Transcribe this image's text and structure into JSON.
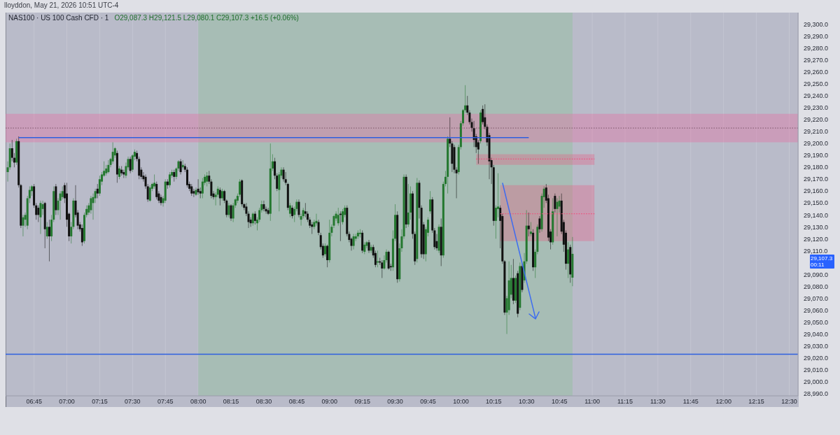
{
  "chart_data": {
    "type": "candlestick",
    "title": "lloyddon, May 21, 2026 10:51 UTC-4",
    "subtitle": "NAS100 · US 100 Cash CFD · 1",
    "annotations": [
      "O29,087.3 H29,121.5 L29,080.1 C29,107.3 +16.5 (+0.06%)",
      "29,107.3",
      "00:11"
    ],
    "x": [
      "2026-05-21T06:33",
      "2026-05-21T06:34",
      "2026-05-21T06:35",
      "2026-05-21T06:36",
      "2026-05-21T06:37",
      "2026-05-21T06:38",
      "2026-05-21T06:39",
      "2026-05-21T06:40",
      "2026-05-21T06:41",
      "2026-05-21T06:42",
      "2026-05-21T06:43",
      "2026-05-21T06:44",
      "2026-05-21T06:45",
      "2026-05-21T06:46",
      "2026-05-21T06:47",
      "2026-05-21T06:48",
      "2026-05-21T06:49",
      "2026-05-21T06:50",
      "2026-05-21T06:51",
      "2026-05-21T06:52",
      "2026-05-21T06:53",
      "2026-05-21T06:54",
      "2026-05-21T06:55",
      "2026-05-21T06:56",
      "2026-05-21T06:57",
      "2026-05-21T06:58",
      "2026-05-21T06:59",
      "2026-05-21T07:00",
      "2026-05-21T07:01",
      "2026-05-21T07:02",
      "2026-05-21T07:03",
      "2026-05-21T07:04",
      "2026-05-21T07:05",
      "2026-05-21T07:06",
      "2026-05-21T07:07",
      "2026-05-21T07:08",
      "2026-05-21T07:09",
      "2026-05-21T07:10",
      "2026-05-21T07:11",
      "2026-05-21T07:12",
      "2026-05-21T07:13",
      "2026-05-21T07:14",
      "2026-05-21T07:15",
      "2026-05-21T07:16",
      "2026-05-21T07:17",
      "2026-05-21T07:18",
      "2026-05-21T07:19",
      "2026-05-21T07:20",
      "2026-05-21T07:21",
      "2026-05-21T07:22",
      "2026-05-21T07:23",
      "2026-05-21T07:24",
      "2026-05-21T07:25",
      "2026-05-21T07:26",
      "2026-05-21T07:27",
      "2026-05-21T07:28",
      "2026-05-21T07:29",
      "2026-05-21T07:30",
      "2026-05-21T07:31",
      "2026-05-21T07:32",
      "2026-05-21T07:33",
      "2026-05-21T07:34",
      "2026-05-21T07:35",
      "2026-05-21T07:36",
      "2026-05-21T07:37",
      "2026-05-21T07:38",
      "2026-05-21T07:39",
      "2026-05-21T07:40",
      "2026-05-21T07:41",
      "2026-05-21T07:42",
      "2026-05-21T07:43",
      "2026-05-21T07:44",
      "2026-05-21T07:45",
      "2026-05-21T07:46",
      "2026-05-21T07:47",
      "2026-05-21T07:48",
      "2026-05-21T07:49",
      "2026-05-21T07:50",
      "2026-05-21T07:51",
      "2026-05-21T07:52",
      "2026-05-21T07:53",
      "2026-05-21T07:54",
      "2026-05-21T07:55",
      "2026-05-21T07:56",
      "2026-05-21T07:57",
      "2026-05-21T07:58",
      "2026-05-21T07:59",
      "2026-05-21T08:00",
      "2026-05-21T08:01",
      "2026-05-21T08:02",
      "2026-05-21T08:03",
      "2026-05-21T08:04",
      "2026-05-21T08:05",
      "2026-05-21T08:06",
      "2026-05-21T08:07",
      "2026-05-21T08:08",
      "2026-05-21T08:09",
      "2026-05-21T08:10",
      "2026-05-21T08:11",
      "2026-05-21T08:12",
      "2026-05-21T08:13",
      "2026-05-21T08:14",
      "2026-05-21T08:15",
      "2026-05-21T08:16",
      "2026-05-21T08:17",
      "2026-05-21T08:18",
      "2026-05-21T08:19",
      "2026-05-21T08:20",
      "2026-05-21T08:21",
      "2026-05-21T08:22",
      "2026-05-21T08:23",
      "2026-05-21T08:24",
      "2026-05-21T08:25",
      "2026-05-21T08:26",
      "2026-05-21T08:27",
      "2026-05-21T08:28",
      "2026-05-21T08:29",
      "2026-05-21T08:30",
      "2026-05-21T08:31",
      "2026-05-21T08:32",
      "2026-05-21T08:33",
      "2026-05-21T08:34",
      "2026-05-21T08:35",
      "2026-05-21T08:36",
      "2026-05-21T08:37",
      "2026-05-21T08:38",
      "2026-05-21T08:39",
      "2026-05-21T08:40",
      "2026-05-21T08:41",
      "2026-05-21T08:42",
      "2026-05-21T08:43",
      "2026-05-21T08:44",
      "2026-05-21T08:45",
      "2026-05-21T08:46",
      "2026-05-21T08:47",
      "2026-05-21T08:48",
      "2026-05-21T08:49",
      "2026-05-21T08:50",
      "2026-05-21T08:51",
      "2026-05-21T08:52",
      "2026-05-21T08:53",
      "2026-05-21T08:54",
      "2026-05-21T08:55",
      "2026-05-21T08:56",
      "2026-05-21T08:57",
      "2026-05-21T08:58",
      "2026-05-21T08:59",
      "2026-05-21T09:00",
      "2026-05-21T09:01",
      "2026-05-21T09:02",
      "2026-05-21T09:03",
      "2026-05-21T09:04",
      "2026-05-21T09:05",
      "2026-05-21T09:06",
      "2026-05-21T09:07",
      "2026-05-21T09:08",
      "2026-05-21T09:09",
      "2026-05-21T09:10",
      "2026-05-21T09:11",
      "2026-05-21T09:12",
      "2026-05-21T09:13",
      "2026-05-21T09:14",
      "2026-05-21T09:15",
      "2026-05-21T09:16",
      "2026-05-21T09:17",
      "2026-05-21T09:18",
      "2026-05-21T09:19",
      "2026-05-21T09:20",
      "2026-05-21T09:21",
      "2026-05-21T09:22",
      "2026-05-21T09:23",
      "2026-05-21T09:24",
      "2026-05-21T09:25",
      "2026-05-21T09:26",
      "2026-05-21T09:27",
      "2026-05-21T09:28",
      "2026-05-21T09:29",
      "2026-05-21T09:30",
      "2026-05-21T09:31",
      "2026-05-21T09:32",
      "2026-05-21T09:33",
      "2026-05-21T09:34",
      "2026-05-21T09:35",
      "2026-05-21T09:36",
      "2026-05-21T09:37",
      "2026-05-21T09:38",
      "2026-05-21T09:39",
      "2026-05-21T09:40",
      "2026-05-21T09:41",
      "2026-05-21T09:42",
      "2026-05-21T09:43",
      "2026-05-21T09:44",
      "2026-05-21T09:45",
      "2026-05-21T09:46",
      "2026-05-21T09:47",
      "2026-05-21T09:48",
      "2026-05-21T09:49",
      "2026-05-21T09:50",
      "2026-05-21T09:51",
      "2026-05-21T09:52",
      "2026-05-21T09:53",
      "2026-05-21T09:54",
      "2026-05-21T09:55",
      "2026-05-21T09:56",
      "2026-05-21T09:57",
      "2026-05-21T09:58",
      "2026-05-21T09:59",
      "2026-05-21T10:00",
      "2026-05-21T10:01",
      "2026-05-21T10:02",
      "2026-05-21T10:03",
      "2026-05-21T10:04",
      "2026-05-21T10:05",
      "2026-05-21T10:06",
      "2026-05-21T10:07",
      "2026-05-21T10:08",
      "2026-05-21T10:09",
      "2026-05-21T10:10",
      "2026-05-21T10:11",
      "2026-05-21T10:12",
      "2026-05-21T10:13",
      "2026-05-21T10:14",
      "2026-05-21T10:15",
      "2026-05-21T10:16",
      "2026-05-21T10:17",
      "2026-05-21T10:18",
      "2026-05-21T10:19",
      "2026-05-21T10:20",
      "2026-05-21T10:21",
      "2026-05-21T10:22",
      "2026-05-21T10:23",
      "2026-05-21T10:24",
      "2026-05-21T10:25",
      "2026-05-21T10:26",
      "2026-05-21T10:27",
      "2026-05-21T10:28",
      "2026-05-21T10:29",
      "2026-05-21T10:30",
      "2026-05-21T10:31",
      "2026-05-21T10:32",
      "2026-05-21T10:33",
      "2026-05-21T10:34",
      "2026-05-21T10:35",
      "2026-05-21T10:36",
      "2026-05-21T10:37",
      "2026-05-21T10:38",
      "2026-05-21T10:39",
      "2026-05-21T10:40",
      "2026-05-21T10:41",
      "2026-05-21T10:42",
      "2026-05-21T10:43",
      "2026-05-21T10:44",
      "2026-05-21T10:45",
      "2026-05-21T10:46",
      "2026-05-21T10:47",
      "2026-05-21T10:48",
      "2026-05-21T10:49",
      "2026-05-21T10:50",
      "2026-05-21T10:51"
    ],
    "ohlc": [
      [
        29176,
        29185,
        29168,
        29180
      ],
      [
        29180,
        29200,
        29178,
        29196
      ],
      [
        29196,
        29203,
        29185,
        29188
      ],
      [
        29188,
        29192,
        29180,
        29184
      ],
      [
        29184,
        29204,
        29182,
        29202
      ],
      [
        29202,
        29206,
        29163,
        29165
      ],
      [
        29165,
        29166,
        29129,
        29131
      ],
      [
        29131,
        29140,
        29122,
        29138
      ],
      [
        29136,
        29142,
        29130,
        29140
      ],
      [
        29131,
        29156,
        29128,
        29154
      ],
      [
        29154,
        29164,
        29150,
        29161
      ],
      [
        29160,
        29165,
        29156,
        29164
      ],
      [
        29164,
        29166,
        29146,
        29148
      ],
      [
        29148,
        29150,
        29136,
        29140
      ],
      [
        29146,
        29148,
        29134,
        29140
      ],
      [
        29138,
        29152,
        29124,
        29150
      ],
      [
        29145,
        29152,
        29140,
        29149
      ],
      [
        29150,
        29151,
        29112,
        29128
      ],
      [
        29122,
        29134,
        29120,
        29130
      ],
      [
        29130,
        29136,
        29101,
        29122
      ],
      [
        29122,
        29140,
        29118,
        29136
      ],
      [
        29136,
        29164,
        29134,
        29160
      ],
      [
        29164,
        29166,
        29140,
        29144
      ],
      [
        29144,
        29154,
        29140,
        29152
      ],
      [
        29152,
        29160,
        29136,
        29158
      ],
      [
        29155,
        29164,
        29153,
        29160
      ],
      [
        29165,
        29167,
        29150,
        29154
      ],
      [
        29158,
        29167,
        29130,
        29136
      ],
      [
        29141,
        29142,
        29118,
        29122
      ],
      [
        29122,
        29134,
        29116,
        29130
      ],
      [
        29130,
        29154,
        29128,
        29152
      ],
      [
        29152,
        29165,
        29138,
        29140
      ],
      [
        29142,
        29144,
        29128,
        29131
      ],
      [
        29132,
        29134,
        29126,
        29128
      ],
      [
        29129,
        29132,
        29114,
        29117
      ],
      [
        29118,
        29142,
        29116,
        29140
      ],
      [
        29140,
        29148,
        29138,
        29145
      ],
      [
        29142,
        29150,
        29140,
        29148
      ],
      [
        29144,
        29156,
        29141,
        29154
      ],
      [
        29150,
        29158,
        29136,
        29155
      ],
      [
        29154,
        29162,
        29150,
        29160
      ],
      [
        29162,
        29166,
        29154,
        29158
      ],
      [
        29158,
        29173,
        29156,
        29170
      ],
      [
        29168,
        29176,
        29165,
        29174
      ],
      [
        29173,
        29185,
        29172,
        29177
      ],
      [
        29175,
        29182,
        29173,
        29179
      ],
      [
        29176,
        29186,
        29175,
        29182
      ],
      [
        29182,
        29188,
        29180,
        29187
      ],
      [
        29185,
        29201,
        29183,
        29193
      ],
      [
        29190,
        29197,
        29188,
        29196
      ],
      [
        29192,
        29194,
        29167,
        29174
      ],
      [
        29172,
        29181,
        29170,
        29179
      ],
      [
        29178,
        29181,
        29173,
        29175
      ],
      [
        29176,
        29178,
        29171,
        29174
      ],
      [
        29173,
        29184,
        29171,
        29181
      ],
      [
        29180,
        29189,
        29178,
        29187
      ],
      [
        29187,
        29189,
        29175,
        29177
      ],
      [
        29178,
        29191,
        29176,
        29190
      ],
      [
        29189,
        29195,
        29186,
        29193
      ],
      [
        29192,
        29194,
        29185,
        29187
      ],
      [
        29187,
        29189,
        29170,
        29173
      ],
      [
        29178,
        29180,
        29170,
        29172
      ],
      [
        29173,
        29176,
        29168,
        29170
      ],
      [
        29172,
        29174,
        29162,
        29164
      ],
      [
        29164,
        29166,
        29151,
        29153
      ],
      [
        29152,
        29165,
        29151,
        29163
      ],
      [
        29162,
        29167,
        29160,
        29166
      ],
      [
        29164,
        29174,
        29162,
        29167
      ],
      [
        29166,
        29168,
        29153,
        29155
      ],
      [
        29158,
        29160,
        29150,
        29152
      ],
      [
        29155,
        29157,
        29148,
        29150
      ],
      [
        29150,
        29156,
        29147,
        29154
      ],
      [
        29152,
        29170,
        29150,
        29168
      ],
      [
        29168,
        29170,
        29162,
        29165
      ],
      [
        29165,
        29176,
        29163,
        29174
      ],
      [
        29173,
        29178,
        29171,
        29176
      ],
      [
        29176,
        29178,
        29168,
        29172
      ],
      [
        29172,
        29180,
        29170,
        29179
      ],
      [
        29179,
        29186,
        29177,
        29185
      ],
      [
        29185,
        29187,
        29174,
        29176
      ],
      [
        29180,
        29186,
        29178,
        29182
      ],
      [
        29181,
        29183,
        29176,
        29178
      ],
      [
        29178,
        29180,
        29163,
        29165
      ],
      [
        29166,
        29168,
        29160,
        29162
      ],
      [
        29164,
        29166,
        29156,
        29158
      ],
      [
        29160,
        29162,
        29155,
        29158
      ],
      [
        29157,
        29163,
        29156,
        29161
      ],
      [
        29162,
        29170,
        29157,
        29159
      ],
      [
        29160,
        29163,
        29154,
        29158
      ],
      [
        29158,
        29171,
        29154,
        29168
      ],
      [
        29167,
        29174,
        29165,
        29172
      ],
      [
        29168,
        29176,
        29164,
        29173
      ],
      [
        29173,
        29177,
        29166,
        29168
      ],
      [
        29168,
        29170,
        29154,
        29156
      ],
      [
        29158,
        29160,
        29153,
        29155
      ],
      [
        29155,
        29159,
        29148,
        29157
      ],
      [
        29157,
        29164,
        29155,
        29162
      ],
      [
        29161,
        29163,
        29148,
        29154
      ],
      [
        29154,
        29162,
        29152,
        29160
      ],
      [
        29160,
        29161,
        29150,
        29152
      ],
      [
        29152,
        29153,
        29138,
        29140
      ],
      [
        29140,
        29150,
        29138,
        29148
      ],
      [
        29148,
        29149,
        29135,
        29137
      ],
      [
        29137,
        29150,
        29134,
        29148
      ],
      [
        29148,
        29154,
        29146,
        29153
      ],
      [
        29152,
        29158,
        29150,
        29156
      ],
      [
        29157,
        29170,
        29155,
        29168
      ],
      [
        29169,
        29170,
        29147,
        29149
      ],
      [
        29149,
        29150,
        29144,
        29146
      ],
      [
        29147,
        29150,
        29139,
        29141
      ],
      [
        29141,
        29143,
        29129,
        29134
      ],
      [
        29136,
        29138,
        29130,
        29133
      ],
      [
        29133,
        29142,
        29131,
        29141
      ],
      [
        29141,
        29143,
        29132,
        29135
      ],
      [
        29133,
        29138,
        29127,
        29136
      ],
      [
        29136,
        29146,
        29134,
        29144
      ],
      [
        29144,
        29152,
        29142,
        29149
      ],
      [
        29149,
        29152,
        29143,
        29145
      ],
      [
        29145,
        29147,
        29141,
        29143
      ],
      [
        29144,
        29146,
        29140,
        29141
      ],
      [
        29141,
        29200,
        29135,
        29179
      ],
      [
        29179,
        29191,
        29177,
        29185
      ],
      [
        29185,
        29188,
        29170,
        29173
      ],
      [
        29173,
        29175,
        29160,
        29162
      ],
      [
        29161,
        29176,
        29143,
        29174
      ],
      [
        29173,
        29180,
        29171,
        29178
      ],
      [
        29178,
        29180,
        29168,
        29170
      ],
      [
        29170,
        29176,
        29165,
        29167
      ],
      [
        29166,
        29167,
        29144,
        29146
      ],
      [
        29141,
        29150,
        29138,
        29148
      ],
      [
        29146,
        29148,
        29137,
        29139
      ],
      [
        29140,
        29147,
        29134,
        29145
      ],
      [
        29145,
        29153,
        29143,
        29151
      ],
      [
        29151,
        29153,
        29138,
        29140
      ],
      [
        29136,
        29141,
        29131,
        29139
      ],
      [
        29139,
        29146,
        29137,
        29144
      ],
      [
        29143,
        29150,
        29138,
        29141
      ],
      [
        29141,
        29143,
        29134,
        29136
      ],
      [
        29136,
        29138,
        29129,
        29131
      ],
      [
        29132,
        29134,
        29124,
        29130
      ],
      [
        29130,
        29136,
        29128,
        29134
      ],
      [
        29133,
        29141,
        29131,
        29135
      ],
      [
        29134,
        29136,
        29123,
        29125
      ],
      [
        29123,
        29125,
        29111,
        29113
      ],
      [
        29114,
        29116,
        29104,
        29106
      ],
      [
        29107,
        29116,
        29105,
        29114
      ],
      [
        29114,
        29115,
        29096,
        29102
      ],
      [
        29102,
        29136,
        29100,
        29125
      ],
      [
        29125,
        29132,
        29122,
        29130
      ],
      [
        29131,
        29140,
        29129,
        29139
      ],
      [
        29137,
        29143,
        29135,
        29141
      ],
      [
        29133,
        29146,
        29131,
        29140
      ],
      [
        29141,
        29143,
        29118,
        29140
      ],
      [
        29134,
        29145,
        29132,
        29143
      ],
      [
        29140,
        29148,
        29138,
        29146
      ],
      [
        29146,
        29148,
        29122,
        29124
      ],
      [
        29124,
        29126,
        29117,
        29119
      ],
      [
        29120,
        29121,
        29110,
        29114
      ],
      [
        29114,
        29124,
        29111,
        29122
      ],
      [
        29120,
        29124,
        29118,
        29122
      ],
      [
        29122,
        29127,
        29120,
        29125
      ],
      [
        29124,
        29128,
        29121,
        29125
      ],
      [
        29125,
        29127,
        29108,
        29110
      ],
      [
        29109,
        29117,
        29107,
        29115
      ],
      [
        29114,
        29118,
        29112,
        29117
      ],
      [
        29117,
        29119,
        29108,
        29110
      ],
      [
        29110,
        29115,
        29108,
        29113
      ],
      [
        29113,
        29115,
        29104,
        29106
      ],
      [
        29108,
        29110,
        29096,
        29098
      ],
      [
        29100,
        29110,
        29096,
        29101
      ],
      [
        29101,
        29104,
        29098,
        29100
      ],
      [
        29100,
        29102,
        29087,
        29095
      ],
      [
        29095,
        29106,
        29094,
        29102
      ],
      [
        29102,
        29111,
        29100,
        29109
      ],
      [
        29109,
        29110,
        29094,
        29095
      ],
      [
        29097,
        29099,
        29093,
        29096
      ],
      [
        29096,
        29127,
        29093,
        29120
      ],
      [
        29120,
        29149,
        29118,
        29140
      ],
      [
        29140,
        29143,
        29083,
        29086
      ],
      [
        29086,
        29116,
        29084,
        29112
      ],
      [
        29112,
        29128,
        29109,
        29122
      ],
      [
        29122,
        29174,
        29120,
        29172
      ],
      [
        29172,
        29174,
        29129,
        29132
      ],
      [
        29132,
        29166,
        29130,
        29142
      ],
      [
        29142,
        29164,
        29136,
        29158
      ],
      [
        29158,
        29160,
        29120,
        29124
      ],
      [
        29124,
        29126,
        29098,
        29101
      ],
      [
        29103,
        29171,
        29100,
        29167
      ],
      [
        29167,
        29169,
        29137,
        29146
      ],
      [
        29146,
        29148,
        29104,
        29107
      ],
      [
        29132,
        29134,
        29103,
        29107
      ],
      [
        29107,
        29130,
        29101,
        29128
      ],
      [
        29125,
        29138,
        29122,
        29136
      ],
      [
        29143,
        29160,
        29141,
        29153
      ],
      [
        29153,
        29155,
        29125,
        29127
      ],
      [
        29127,
        29129,
        29111,
        29113
      ],
      [
        29118,
        29124,
        29110,
        29112
      ],
      [
        29110,
        29132,
        29108,
        29130
      ],
      [
        29130,
        29137,
        29097,
        29106
      ],
      [
        29106,
        29168,
        29104,
        29166
      ],
      [
        29166,
        29177,
        29164,
        29172
      ],
      [
        29172,
        29206,
        29158,
        29204
      ],
      [
        29204,
        29222,
        29197,
        29200
      ],
      [
        29200,
        29202,
        29176,
        29183
      ],
      [
        29197,
        29199,
        29175,
        29178
      ],
      [
        29178,
        29180,
        29154,
        29175
      ],
      [
        29176,
        29199,
        29174,
        29197
      ],
      [
        29197,
        29219,
        29195,
        29217
      ],
      [
        29217,
        29229,
        29215,
        29228
      ],
      [
        29228,
        29249,
        29226,
        29232
      ],
      [
        29232,
        29240,
        29224,
        29226
      ],
      [
        29226,
        29228,
        29216,
        29218
      ],
      [
        29218,
        29221,
        29210,
        29213
      ],
      [
        29213,
        29219,
        29197,
        29203
      ],
      [
        29206,
        29208,
        29192,
        29197
      ],
      [
        29201,
        29203,
        29183,
        29195
      ],
      [
        29202,
        29228,
        29200,
        29226
      ],
      [
        29229,
        29232,
        29216,
        29218
      ],
      [
        29222,
        29233,
        29212,
        29214
      ],
      [
        29214,
        29216,
        29198,
        29201
      ],
      [
        29207,
        29209,
        29170,
        29185
      ],
      [
        29186,
        29188,
        29166,
        29180
      ],
      [
        29180,
        29182,
        29131,
        29135
      ],
      [
        29135,
        29148,
        29120,
        29146
      ],
      [
        29145,
        29175,
        29138,
        29147
      ],
      [
        29146,
        29148,
        29112,
        29135
      ],
      [
        29139,
        29141,
        29099,
        29101
      ],
      [
        29101,
        29102,
        29056,
        29058
      ],
      [
        29058,
        29072,
        29040,
        29070
      ],
      [
        29060,
        29101,
        29056,
        29085
      ],
      [
        29073,
        29098,
        29070,
        29087
      ],
      [
        29087,
        29103,
        29065,
        29068
      ],
      [
        29068,
        29089,
        29066,
        29087
      ],
      [
        29091,
        29093,
        29054,
        29057
      ],
      [
        29062,
        29100,
        29060,
        29097
      ],
      [
        29097,
        29099,
        29075,
        29077
      ],
      [
        29085,
        29108,
        29083,
        29101
      ],
      [
        29101,
        29144,
        29099,
        29131
      ],
      [
        29131,
        29142,
        29122,
        29128
      ],
      [
        29124,
        29134,
        29122,
        29126
      ],
      [
        29125,
        29128,
        29093,
        29096
      ],
      [
        29096,
        29111,
        29087,
        29109
      ],
      [
        29109,
        29132,
        29107,
        29130
      ],
      [
        29137,
        29139,
        29125,
        29128
      ],
      [
        29128,
        29158,
        29126,
        29156
      ],
      [
        29155,
        29164,
        29146,
        29162
      ],
      [
        29163,
        29166,
        29150,
        29152
      ],
      [
        29154,
        29157,
        29118,
        29121
      ],
      [
        29126,
        29128,
        29111,
        29117
      ],
      [
        29117,
        29154,
        29115,
        29143
      ],
      [
        29156,
        29158,
        29142,
        29145
      ],
      [
        29145,
        29154,
        29122,
        29151
      ],
      [
        29147,
        29156,
        29142,
        29152
      ],
      [
        29152,
        29158,
        29124,
        29126
      ],
      [
        29134,
        29136,
        29109,
        29115
      ],
      [
        29125,
        29127,
        29094,
        29099
      ],
      [
        29099,
        29117,
        29087,
        29111
      ],
      [
        29113,
        29115,
        29083,
        29090
      ],
      [
        29087.3,
        29121.5,
        29080.1,
        29107.3
      ]
    ],
    "colors": [
      "#24782f",
      "#24782f",
      "#111111",
      "#111111",
      "#24782f",
      "#111111",
      "#111111",
      "#24782f",
      "#24782f",
      "#24782f",
      "#24782f",
      "#24782f",
      "#111111",
      "#111111",
      "#111111",
      "#24782f",
      "#24782f",
      "#111111",
      "#24782f",
      "#111111",
      "#24782f",
      "#24782f",
      "#111111",
      "#24782f",
      "#24782f",
      "#24782f",
      "#111111",
      "#111111",
      "#111111",
      "#24782f",
      "#24782f",
      "#111111",
      "#111111",
      "#111111",
      "#111111",
      "#24782f",
      "#24782f",
      "#24782f",
      "#24782f",
      "#24782f",
      "#24782f",
      "#111111",
      "#24782f",
      "#24782f",
      "#24782f",
      "#24782f",
      "#24782f",
      "#24782f",
      "#24782f",
      "#24782f",
      "#111111",
      "#24782f",
      "#111111",
      "#111111",
      "#24782f",
      "#24782f",
      "#111111",
      "#24782f",
      "#24782f",
      "#111111",
      "#111111",
      "#111111",
      "#111111",
      "#111111",
      "#111111",
      "#24782f",
      "#24782f",
      "#24782f",
      "#111111",
      "#111111",
      "#111111",
      "#24782f",
      "#24782f",
      "#111111",
      "#24782f",
      "#24782f",
      "#111111",
      "#24782f",
      "#24782f",
      "#111111",
      "#24782f",
      "#111111",
      "#111111",
      "#111111",
      "#111111",
      "#111111",
      "#24782f",
      "#111111",
      "#111111",
      "#24782f",
      "#24782f",
      "#24782f",
      "#111111",
      "#111111",
      "#111111",
      "#24782f",
      "#24782f",
      "#111111",
      "#24782f",
      "#111111",
      "#111111",
      "#24782f",
      "#111111",
      "#24782f",
      "#24782f",
      "#24782f",
      "#24782f",
      "#111111",
      "#111111",
      "#111111",
      "#111111",
      "#111111",
      "#24782f",
      "#111111",
      "#24782f",
      "#24782f",
      "#24782f",
      "#111111",
      "#111111",
      "#111111",
      "#24782f",
      "#24782f",
      "#111111",
      "#111111",
      "#24782f",
      "#24782f",
      "#111111",
      "#111111",
      "#111111",
      "#24782f",
      "#111111",
      "#24782f",
      "#24782f",
      "#111111",
      "#24782f",
      "#24782f",
      "#111111",
      "#111111",
      "#111111",
      "#111111",
      "#24782f",
      "#24782f",
      "#111111",
      "#111111",
      "#111111",
      "#24782f",
      "#111111",
      "#24782f",
      "#24782f",
      "#24782f",
      "#24782f",
      "#24782f",
      "#111111",
      "#24782f",
      "#24782f",
      "#111111",
      "#111111",
      "#111111",
      "#24782f",
      "#24782f",
      "#24782f",
      "#24782f",
      "#111111",
      "#24782f",
      "#24782f",
      "#111111",
      "#24782f",
      "#111111",
      "#111111",
      "#24782f",
      "#111111",
      "#111111",
      "#24782f",
      "#24782f",
      "#111111",
      "#111111",
      "#24782f",
      "#24782f",
      "#111111",
      "#24782f",
      "#24782f",
      "#24782f",
      "#111111",
      "#24782f",
      "#24782f",
      "#111111",
      "#111111",
      "#24782f",
      "#111111",
      "#111111",
      "#111111",
      "#24782f",
      "#24782f",
      "#24782f",
      "#111111",
      "#111111",
      "#111111",
      "#24782f",
      "#111111",
      "#24782f",
      "#24782f",
      "#24782f",
      "#111111",
      "#111111",
      "#111111",
      "#111111",
      "#24782f",
      "#24782f",
      "#24782f",
      "#24782f",
      "#111111",
      "#111111",
      "#111111",
      "#111111",
      "#111111",
      "#111111",
      "#24782f",
      "#111111",
      "#111111",
      "#111111",
      "#111111",
      "#111111",
      "#111111",
      "#24782f",
      "#24782f",
      "#111111",
      "#111111",
      "#111111",
      "#24782f",
      "#24782f",
      "#24782f",
      "#111111",
      "#24782f",
      "#111111",
      "#24782f",
      "#111111",
      "#24782f",
      "#24782f",
      "#111111",
      "#24782f",
      "#111111",
      "#24782f",
      "#24782f",
      "#111111",
      "#24782f",
      "#24782f",
      "#111111",
      "#111111",
      "#111111",
      "#24782f",
      "#111111",
      "#24782f",
      "#24782f",
      "#111111",
      "#111111",
      "#111111",
      "#24782f",
      "#111111",
      "#24782f"
    ],
    "series": [
      {
        "type": "line",
        "x": [
          "2026-05-21T06:38",
          "2026-05-21T10:31"
        ],
        "values": [
          29205,
          29205
        ],
        "color": "#2f5fe0",
        "line_style": "solid"
      },
      {
        "type": "line",
        "x": [
          "2026-05-21T10:07",
          "2026-05-21T11:01"
        ],
        "values": [
          29187,
          29187
        ],
        "lower": [
          29182,
          29182
        ],
        "upper": [
          29191,
          29191
        ],
        "color": "#ee507c",
        "line_style": "dotted"
      },
      {
        "type": "line",
        "x": [
          "2026-05-21T10:18",
          "2026-05-21T11:01"
        ],
        "values": [
          29141,
          29141
        ],
        "lower": [
          29118,
          29118
        ],
        "upper": [
          29165,
          29165
        ],
        "color": "#ee507c",
        "line_style": "dotted"
      }
    ],
    "xlim": [
      "2026-05-21T06:32",
      "2026-05-21T12:34"
    ],
    "xticks": [
      {
        "value": "2026-05-21T06:45",
        "label": "06:45"
      },
      {
        "value": "2026-05-21T07:00",
        "label": "07:00"
      },
      {
        "value": "2026-05-21T07:15",
        "label": "07:15"
      },
      {
        "value": "2026-05-21T07:30",
        "label": "07:30"
      },
      {
        "value": "2026-05-21T07:45",
        "label": "07:45"
      },
      {
        "value": "2026-05-21T08:00",
        "label": "08:00"
      },
      {
        "value": "2026-05-21T08:15",
        "label": "08:15"
      },
      {
        "value": "2026-05-21T08:30",
        "label": "08:30"
      },
      {
        "value": "2026-05-21T08:45",
        "label": "08:45"
      },
      {
        "value": "2026-05-21T09:00",
        "label": "09:00"
      },
      {
        "value": "2026-05-21T09:15",
        "label": "09:15"
      },
      {
        "value": "2026-05-21T09:30",
        "label": "09:30"
      },
      {
        "value": "2026-05-21T09:45",
        "label": "09:45"
      },
      {
        "value": "2026-05-21T10:00",
        "label": "10:00"
      },
      {
        "value": "2026-05-21T10:15",
        "label": "10:15"
      },
      {
        "value": "2026-05-21T10:30",
        "label": "10:30"
      },
      {
        "value": "2026-05-21T10:45",
        "label": "10:45"
      },
      {
        "value": "2026-05-21T11:00",
        "label": "11:00"
      },
      {
        "value": "2026-05-21T11:15",
        "label": "11:15"
      },
      {
        "value": "2026-05-21T11:30",
        "label": "11:30"
      },
      {
        "value": "2026-05-21T11:45",
        "label": "11:45"
      },
      {
        "value": "2026-05-21T12:00",
        "label": "12:00"
      },
      {
        "value": "2026-05-21T12:15",
        "label": "12:15"
      },
      {
        "value": "2026-05-21T12:30",
        "label": "12:30"
      }
    ],
    "ylim": [
      28988,
      29310
    ],
    "yticks": [
      {
        "value": 28990,
        "label": "28,990.0"
      },
      {
        "value": 29000,
        "label": "29,000.0"
      },
      {
        "value": 29010,
        "label": "29,010.0"
      },
      {
        "value": 29020,
        "label": "29,020.0"
      },
      {
        "value": 29030,
        "label": "29,030.0"
      },
      {
        "value": 29040,
        "label": "29,040.0"
      },
      {
        "value": 29050,
        "label": "29,050.0"
      },
      {
        "value": 29060,
        "label": "29,060.0"
      },
      {
        "value": 29070,
        "label": "29,070.0"
      },
      {
        "value": 29080,
        "label": "29,080.0"
      },
      {
        "value": 29090,
        "label": "29,090.0"
      },
      {
        "value": 29110,
        "label": "29,110.0"
      },
      {
        "value": 29120,
        "label": "29,120.0"
      },
      {
        "value": 29130,
        "label": "29,130.0"
      },
      {
        "value": 29140,
        "label": "29,140.0"
      },
      {
        "value": 29150,
        "label": "29,150.0"
      },
      {
        "value": 29160,
        "label": "29,160.0"
      },
      {
        "value": 29170,
        "label": "29,170.0"
      },
      {
        "value": 29180,
        "label": "29,180.0"
      },
      {
        "value": 29190,
        "label": "29,190.0"
      },
      {
        "value": 29200,
        "label": "29,200.0"
      },
      {
        "value": 29210,
        "label": "29,210.0"
      },
      {
        "value": 29220,
        "label": "29,220.0"
      },
      {
        "value": 29230,
        "label": "29,230.0"
      },
      {
        "value": 29240,
        "label": "29,240.0"
      },
      {
        "value": 29250,
        "label": "29,250.0"
      },
      {
        "value": 29260,
        "label": "29,260.0"
      },
      {
        "value": 29270,
        "label": "29,270.0"
      },
      {
        "value": 29280,
        "label": "29,280.0"
      },
      {
        "value": 29290,
        "label": "29,290.0"
      },
      {
        "value": 29300,
        "label": "29,300.0"
      }
    ],
    "grid": "x",
    "bands": [
      {
        "axis": "x",
        "from": "2026-05-21T08:00",
        "to": "2026-05-21T10:51",
        "color": "#a7bdb5"
      },
      {
        "axis": "y",
        "from": 29201,
        "to": 29225,
        "color": "#e07aa8"
      }
    ],
    "ref_lines": [
      {
        "axis": "y",
        "value": 29213,
        "color": "#7a5468",
        "line_style": "dotted"
      },
      {
        "axis": "y",
        "value": 29023,
        "color": "#2f5fe0",
        "line_style": "solid"
      }
    ]
  }
}
